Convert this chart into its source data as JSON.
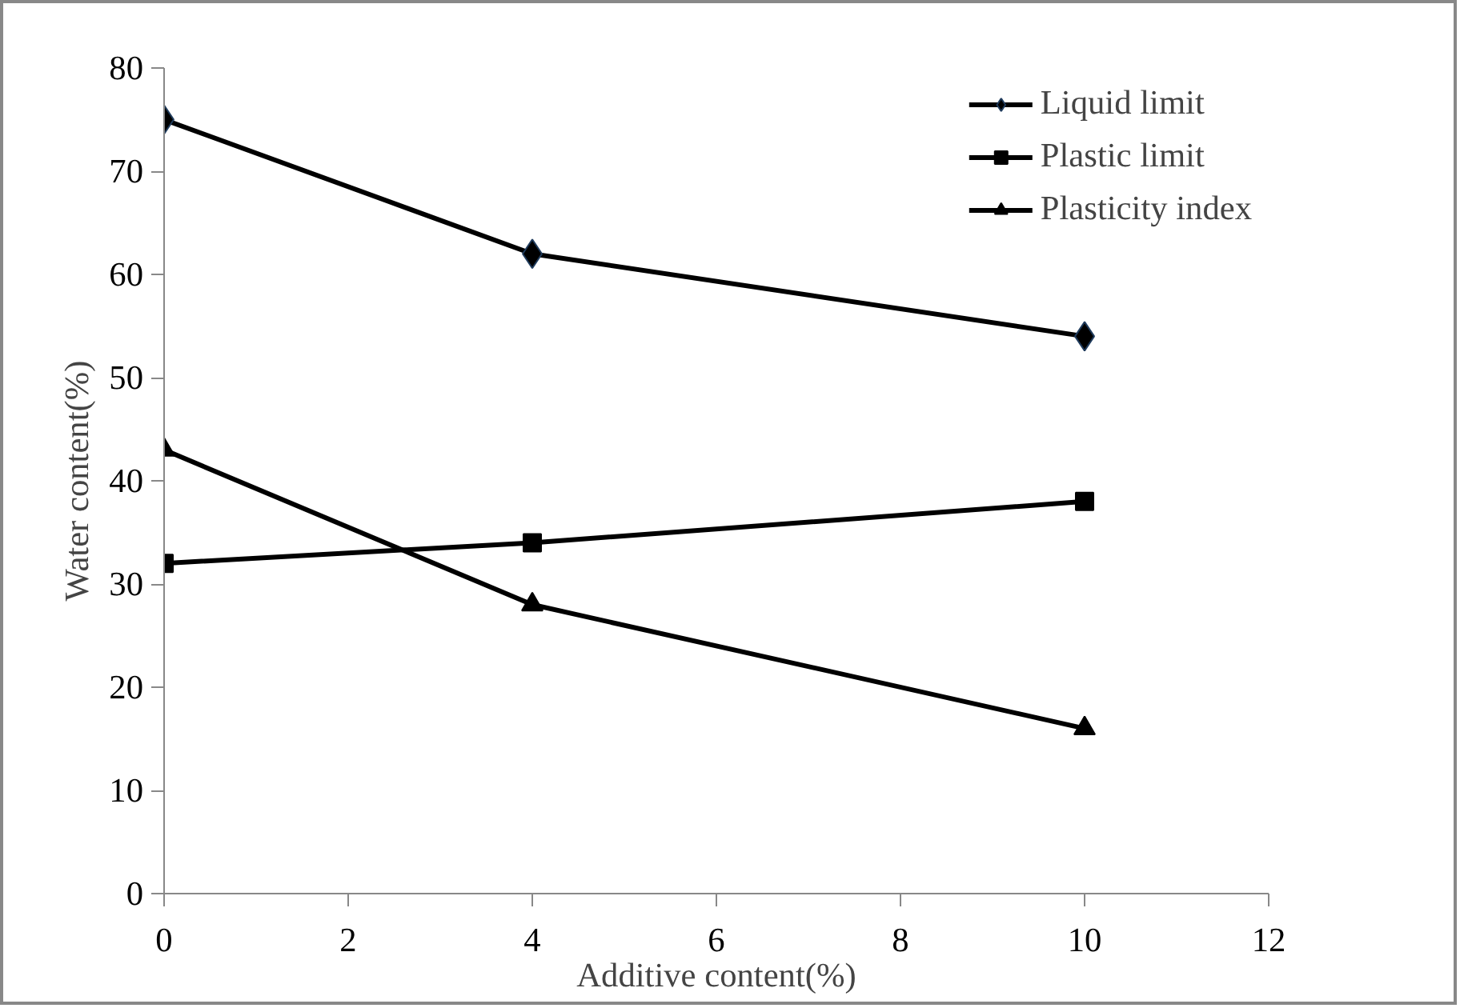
{
  "chart_data": {
    "type": "line",
    "xlabel": "Additive content(%)",
    "ylabel": "Water content(%)",
    "x": [
      0,
      4,
      10
    ],
    "series": [
      {
        "name": "Liquid limit",
        "color": "#000000",
        "marker": "diamond",
        "values": [
          75,
          62,
          54
        ]
      },
      {
        "name": "Plastic limit",
        "color": "#000000",
        "marker": "square",
        "values": [
          32,
          34,
          38
        ]
      },
      {
        "name": "Plasticity index",
        "color": "#000000",
        "marker": "triangle",
        "values": [
          43,
          28,
          16
        ]
      }
    ],
    "xlim": [
      0,
      12
    ],
    "xticks": [
      0,
      2,
      4,
      6,
      8,
      10,
      12
    ],
    "ylim": [
      0,
      80
    ],
    "yticks": [
      0,
      10,
      20,
      30,
      40,
      50,
      60,
      70,
      80
    ],
    "grid": false,
    "legend": "top right",
    "line_style": "solid"
  }
}
